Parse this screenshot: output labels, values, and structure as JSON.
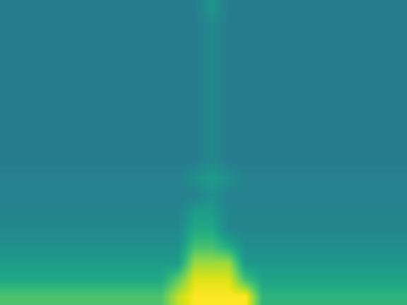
{
  "chart_data": {
    "type": "heatmap",
    "color": "viridis",
    "tick_labels": false,
    "color_range": [
      0,
      1
    ],
    "cells": [
      [
        0.72,
        0.72,
        0.72,
        0.72,
        0.72,
        0.72,
        0.72,
        0.72,
        0.72,
        0.72,
        0.9,
        1.0,
        1.0,
        1.0,
        1.0,
        0.65,
        0.65,
        0.65,
        0.65,
        0.65,
        0.65,
        0.65,
        0.65,
        0.65
      ],
      [
        0.6,
        0.6,
        0.6,
        0.6,
        0.6,
        0.6,
        0.6,
        0.6,
        0.6,
        0.6,
        0.75,
        0.95,
        0.95,
        0.95,
        0.7,
        0.58,
        0.58,
        0.58,
        0.58,
        0.58,
        0.58,
        0.58,
        0.58,
        0.58
      ],
      [
        0.55,
        0.55,
        0.55,
        0.55,
        0.55,
        0.55,
        0.55,
        0.55,
        0.55,
        0.55,
        0.55,
        0.85,
        0.85,
        0.85,
        0.53,
        0.53,
        0.53,
        0.53,
        0.53,
        0.53,
        0.53,
        0.53,
        0.53,
        0.53
      ],
      [
        0.5,
        0.5,
        0.5,
        0.5,
        0.5,
        0.5,
        0.5,
        0.5,
        0.5,
        0.5,
        0.5,
        0.7,
        0.7,
        0.6,
        0.49,
        0.49,
        0.49,
        0.49,
        0.49,
        0.49,
        0.49,
        0.49,
        0.49,
        0.49
      ],
      [
        0.47,
        0.47,
        0.47,
        0.47,
        0.47,
        0.47,
        0.47,
        0.47,
        0.47,
        0.47,
        0.47,
        0.6,
        0.6,
        0.46,
        0.46,
        0.46,
        0.46,
        0.46,
        0.46,
        0.46,
        0.46,
        0.46,
        0.46,
        0.46
      ],
      [
        0.45,
        0.45,
        0.45,
        0.45,
        0.45,
        0.45,
        0.45,
        0.45,
        0.45,
        0.45,
        0.45,
        0.55,
        0.55,
        0.45,
        0.45,
        0.45,
        0.45,
        0.45,
        0.45,
        0.45,
        0.45,
        0.45,
        0.45,
        0.45
      ],
      [
        0.44,
        0.44,
        0.44,
        0.44,
        0.44,
        0.44,
        0.44,
        0.44,
        0.44,
        0.44,
        0.44,
        0.44,
        0.5,
        0.44,
        0.44,
        0.44,
        0.44,
        0.44,
        0.44,
        0.44,
        0.44,
        0.44,
        0.44,
        0.44
      ],
      [
        0.44,
        0.44,
        0.44,
        0.44,
        0.44,
        0.44,
        0.44,
        0.44,
        0.44,
        0.44,
        0.44,
        0.5,
        0.55,
        0.5,
        0.44,
        0.44,
        0.44,
        0.44,
        0.44,
        0.44,
        0.44,
        0.44,
        0.44,
        0.44
      ],
      [
        0.42,
        0.42,
        0.42,
        0.42,
        0.42,
        0.42,
        0.42,
        0.42,
        0.42,
        0.42,
        0.42,
        0.42,
        0.47,
        0.42,
        0.42,
        0.42,
        0.42,
        0.42,
        0.42,
        0.42,
        0.42,
        0.42,
        0.42,
        0.42
      ],
      [
        0.42,
        0.42,
        0.42,
        0.42,
        0.42,
        0.42,
        0.42,
        0.42,
        0.42,
        0.42,
        0.42,
        0.42,
        0.47,
        0.42,
        0.42,
        0.42,
        0.42,
        0.42,
        0.42,
        0.42,
        0.42,
        0.42,
        0.42,
        0.42
      ],
      [
        0.42,
        0.42,
        0.42,
        0.42,
        0.42,
        0.42,
        0.42,
        0.42,
        0.42,
        0.42,
        0.42,
        0.42,
        0.47,
        0.42,
        0.42,
        0.42,
        0.42,
        0.42,
        0.42,
        0.42,
        0.42,
        0.42,
        0.42,
        0.42
      ],
      [
        0.42,
        0.42,
        0.42,
        0.42,
        0.42,
        0.42,
        0.42,
        0.42,
        0.42,
        0.42,
        0.42,
        0.42,
        0.47,
        0.42,
        0.42,
        0.42,
        0.42,
        0.42,
        0.42,
        0.42,
        0.42,
        0.42,
        0.42,
        0.42
      ],
      [
        0.42,
        0.42,
        0.42,
        0.42,
        0.42,
        0.42,
        0.42,
        0.42,
        0.42,
        0.42,
        0.42,
        0.42,
        0.47,
        0.42,
        0.42,
        0.42,
        0.42,
        0.42,
        0.42,
        0.42,
        0.42,
        0.42,
        0.42,
        0.42
      ],
      [
        0.42,
        0.42,
        0.42,
        0.42,
        0.42,
        0.42,
        0.42,
        0.42,
        0.42,
        0.42,
        0.42,
        0.42,
        0.47,
        0.42,
        0.42,
        0.42,
        0.42,
        0.42,
        0.42,
        0.42,
        0.42,
        0.42,
        0.42,
        0.42
      ],
      [
        0.42,
        0.42,
        0.42,
        0.42,
        0.42,
        0.42,
        0.42,
        0.42,
        0.42,
        0.42,
        0.42,
        0.42,
        0.47,
        0.42,
        0.42,
        0.42,
        0.42,
        0.42,
        0.42,
        0.42,
        0.42,
        0.42,
        0.42,
        0.42
      ],
      [
        0.42,
        0.42,
        0.42,
        0.42,
        0.42,
        0.42,
        0.42,
        0.42,
        0.42,
        0.42,
        0.42,
        0.42,
        0.47,
        0.42,
        0.42,
        0.42,
        0.42,
        0.42,
        0.42,
        0.42,
        0.42,
        0.42,
        0.42,
        0.42
      ],
      [
        0.42,
        0.42,
        0.42,
        0.42,
        0.42,
        0.42,
        0.42,
        0.42,
        0.42,
        0.42,
        0.42,
        0.42,
        0.47,
        0.42,
        0.42,
        0.42,
        0.42,
        0.42,
        0.42,
        0.42,
        0.42,
        0.42,
        0.42,
        0.42
      ],
      [
        0.42,
        0.42,
        0.42,
        0.42,
        0.42,
        0.42,
        0.42,
        0.42,
        0.42,
        0.42,
        0.42,
        0.42,
        0.52,
        0.42,
        0.42,
        0.42,
        0.42,
        0.42,
        0.42,
        0.42,
        0.42,
        0.42,
        0.42,
        0.42
      ]
    ]
  }
}
